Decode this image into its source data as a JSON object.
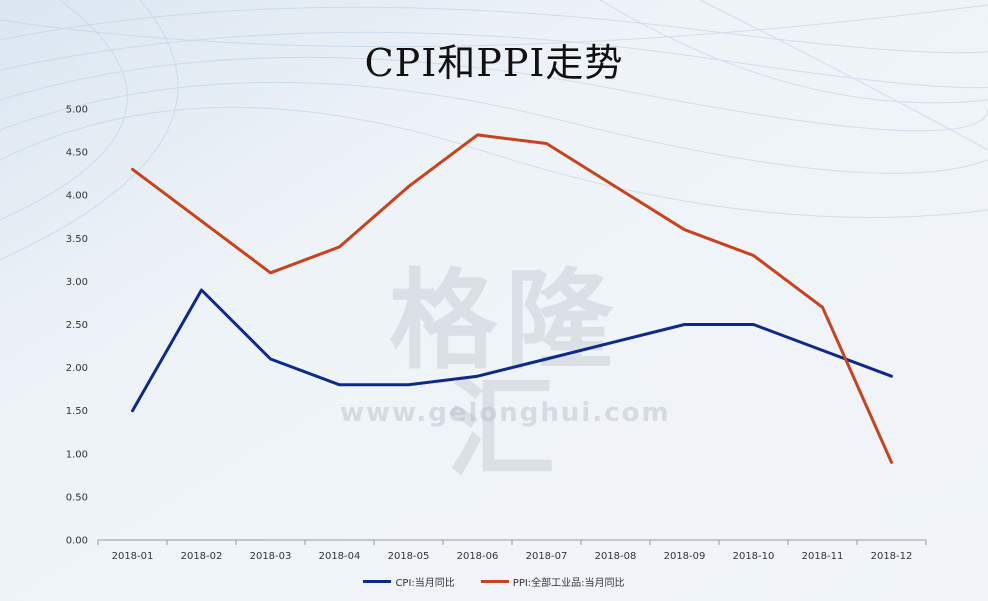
{
  "title": "CPI和PPI走势",
  "watermark": {
    "text": "格隆汇",
    "url": "www.gelonghui.com"
  },
  "colors": {
    "cpi": "#0d2a8a",
    "ppi": "#c8421b",
    "axis": "#9a9a9a"
  },
  "chart_data": {
    "type": "line",
    "title": "CPI和PPI走势",
    "categories": [
      "2018-01",
      "2018-02",
      "2018-03",
      "2018-04",
      "2018-05",
      "2018-06",
      "2018-07",
      "2018-08",
      "2018-09",
      "2018-10",
      "2018-11",
      "2018-12"
    ],
    "series": [
      {
        "name": "CPI:当月同比",
        "values": [
          1.5,
          2.9,
          2.1,
          1.8,
          1.8,
          1.9,
          2.1,
          2.3,
          2.5,
          2.5,
          2.2,
          1.9
        ]
      },
      {
        "name": "PPI:全部工业品:当月同比",
        "values": [
          4.3,
          3.7,
          3.1,
          3.4,
          4.1,
          4.7,
          4.6,
          4.1,
          3.6,
          3.3,
          2.7,
          0.9
        ]
      }
    ],
    "ylim": [
      0,
      5
    ],
    "yticks": [
      "0.00",
      "0.50",
      "1.00",
      "1.50",
      "2.00",
      "2.50",
      "3.00",
      "3.50",
      "4.00",
      "4.50",
      "5.00"
    ],
    "grid": false,
    "legend": "bottom-center"
  }
}
